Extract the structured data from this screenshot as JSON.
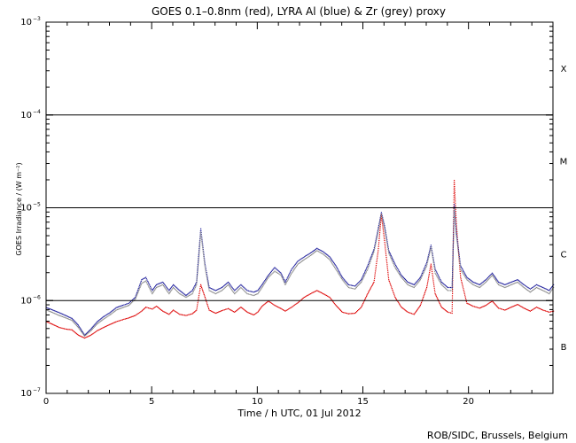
{
  "chart_data": {
    "type": "scatter",
    "title": "GOES 0.1–0.8nm (red), LYRA Al (blue) & Zr (grey) proxy",
    "xlabel": "Time / h UTC, 01 Jul 2012",
    "ylabel": "GOES Irradiance / (W m⁻²)",
    "xlim": [
      0,
      24
    ],
    "ylim": [
      1e-07,
      0.001
    ],
    "yscale": "log",
    "x_ticks": [
      "0",
      "5",
      "10",
      "15",
      "20"
    ],
    "x_tick_values": [
      0,
      5,
      10,
      15,
      20
    ],
    "y_ticks": [
      {
        "value": 0.001,
        "mantissa": "10",
        "exponent": "−3"
      },
      {
        "value": 0.0001,
        "mantissa": "10",
        "exponent": "−4"
      },
      {
        "value": 1e-05,
        "mantissa": "10",
        "exponent": "−5"
      },
      {
        "value": 1e-06,
        "mantissa": "10",
        "exponent": "−6"
      },
      {
        "value": 1e-07,
        "mantissa": "10",
        "exponent": "−7"
      }
    ],
    "flare_classes": [
      {
        "label": "X",
        "value": 0.00032
      },
      {
        "label": "M",
        "value": 3.2e-05
      },
      {
        "label": "C",
        "value": 3.2e-06
      },
      {
        "label": "B",
        "value": 3.2e-07
      }
    ],
    "class_lines": [
      0.0001,
      1e-05,
      1e-06
    ],
    "series": [
      {
        "color": "#dd0000",
        "x": [
          0.0,
          0.3,
          0.6,
          0.9,
          1.2,
          1.5,
          1.8,
          2.1,
          2.4,
          2.7,
          3.0,
          3.3,
          3.6,
          3.9,
          4.2,
          4.5,
          4.7,
          5.0,
          5.2,
          5.5,
          5.8,
          6.0,
          6.3,
          6.6,
          6.9,
          7.1,
          7.3,
          7.5,
          7.7,
          8.0,
          8.3,
          8.6,
          8.9,
          9.2,
          9.5,
          9.8,
          10.0,
          10.2,
          10.5,
          10.8,
          11.1,
          11.3,
          11.6,
          11.9,
          12.2,
          12.5,
          12.8,
          13.1,
          13.4,
          13.7,
          14.0,
          14.3,
          14.6,
          14.9,
          15.2,
          15.5,
          15.7,
          15.85,
          16.0,
          16.2,
          16.5,
          16.8,
          17.1,
          17.4,
          17.7,
          18.0,
          18.2,
          18.4,
          18.7,
          19.0,
          19.2,
          19.3,
          19.4,
          19.6,
          19.9,
          20.2,
          20.5,
          20.8,
          21.1,
          21.4,
          21.7,
          22.0,
          22.3,
          22.6,
          22.9,
          23.2,
          23.5,
          23.8,
          24.0
        ],
        "y": [
          6e-07,
          5.6e-07,
          5.2e-07,
          5e-07,
          4.9e-07,
          4.3e-07,
          4e-07,
          4.3e-07,
          4.8e-07,
          5.2e-07,
          5.6e-07,
          6e-07,
          6.3e-07,
          6.6e-07,
          7e-07,
          7.8e-07,
          8.6e-07,
          8.2e-07,
          8.8e-07,
          7.8e-07,
          7.2e-07,
          8e-07,
          7.2e-07,
          7e-07,
          7.3e-07,
          8e-07,
          1.5e-06,
          1.1e-06,
          8e-07,
          7.4e-07,
          7.9e-07,
          8.3e-07,
          7.6e-07,
          8.6e-07,
          7.6e-07,
          7.1e-07,
          7.6e-07,
          8.8e-07,
          1e-06,
          9e-07,
          8.3e-07,
          7.8e-07,
          8.6e-07,
          9.6e-07,
          1.1e-06,
          1.2e-06,
          1.3e-06,
          1.2e-06,
          1.1e-06,
          9e-07,
          7.6e-07,
          7.3e-07,
          7.4e-07,
          8.6e-07,
          1.2e-06,
          1.6e-06,
          3.5e-06,
          8.5e-06,
          4.5e-06,
          1.7e-06,
          1.1e-06,
          8.6e-07,
          7.6e-07,
          7.2e-07,
          9e-07,
          1.4e-06,
          2.5e-06,
          1.2e-06,
          8.6e-07,
          7.6e-07,
          7.4e-07,
          2e-05,
          6.8e-06,
          1.8e-06,
          9.5e-07,
          8.8e-07,
          8.4e-07,
          9e-07,
          1e-06,
          8.4e-07,
          8e-07,
          8.6e-07,
          9.2e-07,
          8.4e-07,
          7.8e-07,
          8.6e-07,
          8e-07,
          7.6e-07,
          7.8e-07
        ]
      },
      {
        "color": "#1a1a9a",
        "x": [
          0.0,
          0.3,
          0.6,
          0.9,
          1.2,
          1.5,
          1.8,
          2.1,
          2.4,
          2.7,
          3.0,
          3.3,
          3.6,
          3.9,
          4.2,
          4.5,
          4.7,
          5.0,
          5.2,
          5.5,
          5.8,
          6.0,
          6.3,
          6.6,
          6.9,
          7.1,
          7.3,
          7.5,
          7.7,
          8.0,
          8.3,
          8.6,
          8.9,
          9.2,
          9.5,
          9.8,
          10.0,
          10.2,
          10.5,
          10.8,
          11.1,
          11.3,
          11.6,
          11.9,
          12.2,
          12.5,
          12.8,
          13.1,
          13.4,
          13.7,
          14.0,
          14.3,
          14.6,
          14.9,
          15.2,
          15.5,
          15.7,
          15.85,
          16.0,
          16.2,
          16.5,
          16.8,
          17.1,
          17.4,
          17.7,
          18.0,
          18.2,
          18.4,
          18.7,
          19.0,
          19.2,
          19.3,
          19.4,
          19.6,
          19.9,
          20.2,
          20.5,
          20.8,
          21.1,
          21.4,
          21.7,
          22.0,
          22.3,
          22.6,
          22.9,
          23.2,
          23.5,
          23.8,
          24.0
        ],
        "y": [
          8.5e-07,
          8e-07,
          7.5e-07,
          7e-07,
          6.5e-07,
          5.5e-07,
          4.3e-07,
          5e-07,
          6e-07,
          6.8e-07,
          7.5e-07,
          8.5e-07,
          9e-07,
          9.5e-07,
          1.1e-06,
          1.7e-06,
          1.8e-06,
          1.3e-06,
          1.5e-06,
          1.6e-06,
          1.3e-06,
          1.5e-06,
          1.3e-06,
          1.15e-06,
          1.3e-06,
          1.6e-06,
          6e-06,
          2.5e-06,
          1.4e-06,
          1.3e-06,
          1.4e-06,
          1.6e-06,
          1.3e-06,
          1.5e-06,
          1.3e-06,
          1.25e-06,
          1.3e-06,
          1.5e-06,
          1.9e-06,
          2.3e-06,
          2e-06,
          1.6e-06,
          2.2e-06,
          2.7e-06,
          3e-06,
          3.3e-06,
          3.7e-06,
          3.4e-06,
          3e-06,
          2.4e-06,
          1.8e-06,
          1.5e-06,
          1.45e-06,
          1.7e-06,
          2.4e-06,
          3.6e-06,
          6e-06,
          9e-06,
          6.5e-06,
          3.5e-06,
          2.5e-06,
          1.9e-06,
          1.6e-06,
          1.5e-06,
          1.8e-06,
          2.6e-06,
          4e-06,
          2.2e-06,
          1.6e-06,
          1.4e-06,
          1.4e-06,
          1.1e-05,
          5.5e-06,
          2.4e-06,
          1.8e-06,
          1.6e-06,
          1.5e-06,
          1.7e-06,
          2e-06,
          1.6e-06,
          1.5e-06,
          1.6e-06,
          1.7e-06,
          1.5e-06,
          1.35e-06,
          1.5e-06,
          1.4e-06,
          1.3e-06,
          1.5e-06
        ]
      },
      {
        "color": "#888888",
        "x": [
          0.0,
          0.3,
          0.6,
          0.9,
          1.2,
          1.5,
          1.8,
          2.1,
          2.4,
          2.7,
          3.0,
          3.3,
          3.6,
          3.9,
          4.2,
          4.5,
          4.7,
          5.0,
          5.2,
          5.5,
          5.8,
          6.0,
          6.3,
          6.6,
          6.9,
          7.1,
          7.3,
          7.5,
          7.7,
          8.0,
          8.3,
          8.6,
          8.9,
          9.2,
          9.5,
          9.8,
          10.0,
          10.2,
          10.5,
          10.8,
          11.1,
          11.3,
          11.6,
          11.9,
          12.2,
          12.5,
          12.8,
          13.1,
          13.4,
          13.7,
          14.0,
          14.3,
          14.6,
          14.9,
          15.2,
          15.5,
          15.7,
          15.85,
          16.0,
          16.2,
          16.5,
          16.8,
          17.1,
          17.4,
          17.7,
          18.0,
          18.2,
          18.4,
          18.7,
          19.0,
          19.2,
          19.3,
          19.4,
          19.6,
          19.9,
          20.2,
          20.5,
          20.8,
          21.1,
          21.4,
          21.7,
          22.0,
          22.3,
          22.6,
          22.9,
          23.2,
          23.5,
          23.8,
          24.0
        ],
        "y": [
          8e-07,
          7.5e-07,
          7e-07,
          6.6e-07,
          6.2e-07,
          5.2e-07,
          4.2e-07,
          4.8e-07,
          5.7e-07,
          6.4e-07,
          7.1e-07,
          8e-07,
          8.5e-07,
          9e-07,
          1.05e-06,
          1.55e-06,
          1.65e-06,
          1.2e-06,
          1.4e-06,
          1.5e-06,
          1.2e-06,
          1.4e-06,
          1.2e-06,
          1.1e-06,
          1.2e-06,
          1.5e-06,
          5.5e-06,
          2.3e-06,
          1.3e-06,
          1.2e-06,
          1.3e-06,
          1.5e-06,
          1.2e-06,
          1.4e-06,
          1.2e-06,
          1.15e-06,
          1.2e-06,
          1.4e-06,
          1.8e-06,
          2.1e-06,
          1.9e-06,
          1.5e-06,
          2e-06,
          2.5e-06,
          2.8e-06,
          3.1e-06,
          3.5e-06,
          3.2e-06,
          2.8e-06,
          2.2e-06,
          1.7e-06,
          1.4e-06,
          1.35e-06,
          1.6e-06,
          2.2e-06,
          3.4e-06,
          5.6e-06,
          8.6e-06,
          6.1e-06,
          3.3e-06,
          2.3e-06,
          1.8e-06,
          1.5e-06,
          1.4e-06,
          1.7e-06,
          2.4e-06,
          3.8e-06,
          2e-06,
          1.5e-06,
          1.3e-06,
          1.3e-06,
          1e-05,
          5.1e-06,
          2.2e-06,
          1.7e-06,
          1.5e-06,
          1.4e-06,
          1.6e-06,
          1.9e-06,
          1.5e-06,
          1.4e-06,
          1.5e-06,
          1.6e-06,
          1.4e-06,
          1.25e-06,
          1.4e-06,
          1.3e-06,
          1.2e-06,
          1.4e-06
        ]
      }
    ],
    "grid": false,
    "legend": "none"
  },
  "credit": "ROB/SIDC, Brussels, Belgium"
}
